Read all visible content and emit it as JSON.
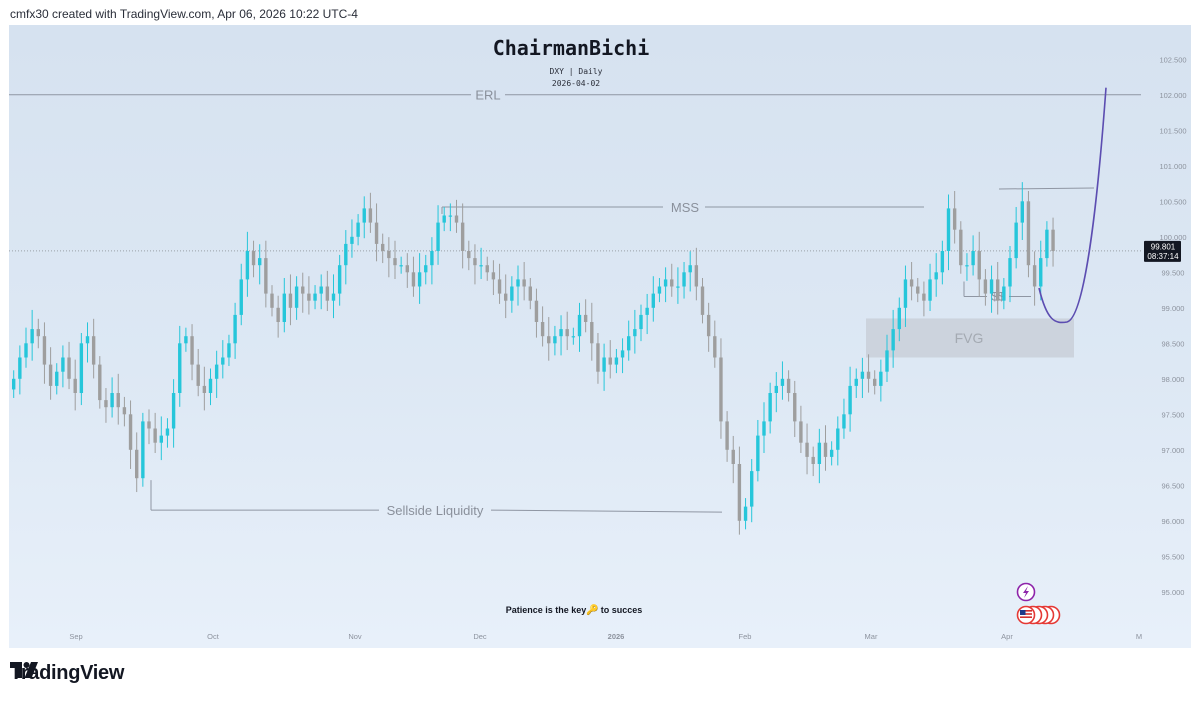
{
  "header": {
    "created_text": "cmfx30 created with TradingView.com, Apr 06, 2026 10:22 UTC-4"
  },
  "chart_title": {
    "author": "ChairmanBichi",
    "symbol_line": "DXY | Daily",
    "date_line": "2026-04-02"
  },
  "annotations": {
    "erl": "ERL",
    "mss": "MSS",
    "sellside": "Sellside Liquidity",
    "fvg": "FVG",
    "dollars": "$$",
    "patience_before": "Patience is the key",
    "patience_after": "to succes"
  },
  "price_label": {
    "price": "99.801",
    "countdown": "08:37:14"
  },
  "footer": {
    "brand": "TradingView"
  },
  "colors": {
    "up": "#26c6da",
    "down": "#9e9e9e",
    "curve": "#5c4db1",
    "line": "#8f96a3",
    "price_badge": "#131722"
  },
  "icons": [
    "lightning-icon",
    "us-flag-icon"
  ],
  "chart_data": {
    "type": "candlestick",
    "symbol": "DXY",
    "timeframe": "Daily",
    "y_range": [
      94.6,
      103.0
    ],
    "y_ticks": [
      "102.500",
      "102.000",
      "101.500",
      "101.000",
      "100.500",
      "100.000",
      "99.500",
      "99.000",
      "98.500",
      "98.000",
      "97.500",
      "97.000",
      "96.500",
      "96.000",
      "95.500",
      "95.000"
    ],
    "x_ticks": [
      "Sep",
      "Oct",
      "Nov",
      "Dec",
      "2026",
      "Feb",
      "Mar",
      "Apr",
      "M"
    ],
    "current_price": 99.801,
    "levels": {
      "erl": 102.0,
      "mss": 100.42,
      "sellside": 96.15,
      "dollars": 99.16,
      "fvg": [
        98.3,
        98.85
      ],
      "projection_start": 99.8,
      "projection_low": 98.8,
      "projection_end": 102.1
    },
    "closes": [
      98.0,
      98.3,
      98.5,
      98.7,
      98.6,
      98.2,
      97.9,
      98.1,
      98.3,
      98.0,
      97.8,
      98.5,
      98.6,
      98.2,
      97.7,
      97.6,
      97.8,
      97.6,
      97.5,
      97.0,
      96.6,
      97.4,
      97.3,
      97.1,
      97.2,
      97.3,
      97.8,
      98.5,
      98.6,
      98.2,
      97.9,
      97.8,
      98.0,
      98.2,
      98.3,
      98.5,
      98.9,
      99.4,
      99.8,
      99.6,
      99.7,
      99.2,
      99.0,
      98.8,
      99.2,
      99.0,
      99.3,
      99.2,
      99.1,
      99.2,
      99.3,
      99.1,
      99.2,
      99.6,
      99.9,
      100.0,
      100.2,
      100.4,
      100.2,
      99.9,
      99.8,
      99.7,
      99.6,
      99.6,
      99.5,
      99.3,
      99.5,
      99.6,
      99.8,
      100.2,
      100.3,
      100.3,
      100.2,
      99.8,
      99.7,
      99.6,
      99.6,
      99.5,
      99.4,
      99.2,
      99.1,
      99.3,
      99.4,
      99.3,
      99.1,
      98.8,
      98.6,
      98.5,
      98.6,
      98.7,
      98.6,
      98.6,
      98.9,
      98.8,
      98.5,
      98.1,
      98.3,
      98.2,
      98.3,
      98.4,
      98.6,
      98.7,
      98.9,
      99.0,
      99.2,
      99.3,
      99.4,
      99.3,
      99.3,
      99.5,
      99.6,
      99.3,
      98.9,
      98.6,
      98.3,
      97.4,
      97.0,
      96.8,
      96.0,
      96.2,
      96.7,
      97.2,
      97.4,
      97.8,
      97.9,
      98.0,
      97.8,
      97.4,
      97.1,
      96.9,
      96.8,
      97.1,
      96.9,
      97.0,
      97.3,
      97.5,
      97.9,
      98.0,
      98.1,
      98.0,
      97.9,
      98.1,
      98.4,
      98.7,
      99.0,
      99.4,
      99.3,
      99.2,
      99.1,
      99.4,
      99.5,
      99.8,
      100.4,
      100.1,
      99.6,
      99.6,
      99.8,
      99.4,
      99.2,
      99.4,
      99.1,
      99.3,
      99.7,
      100.2,
      100.5,
      99.6,
      99.3,
      99.7,
      100.1,
      99.8
    ]
  }
}
